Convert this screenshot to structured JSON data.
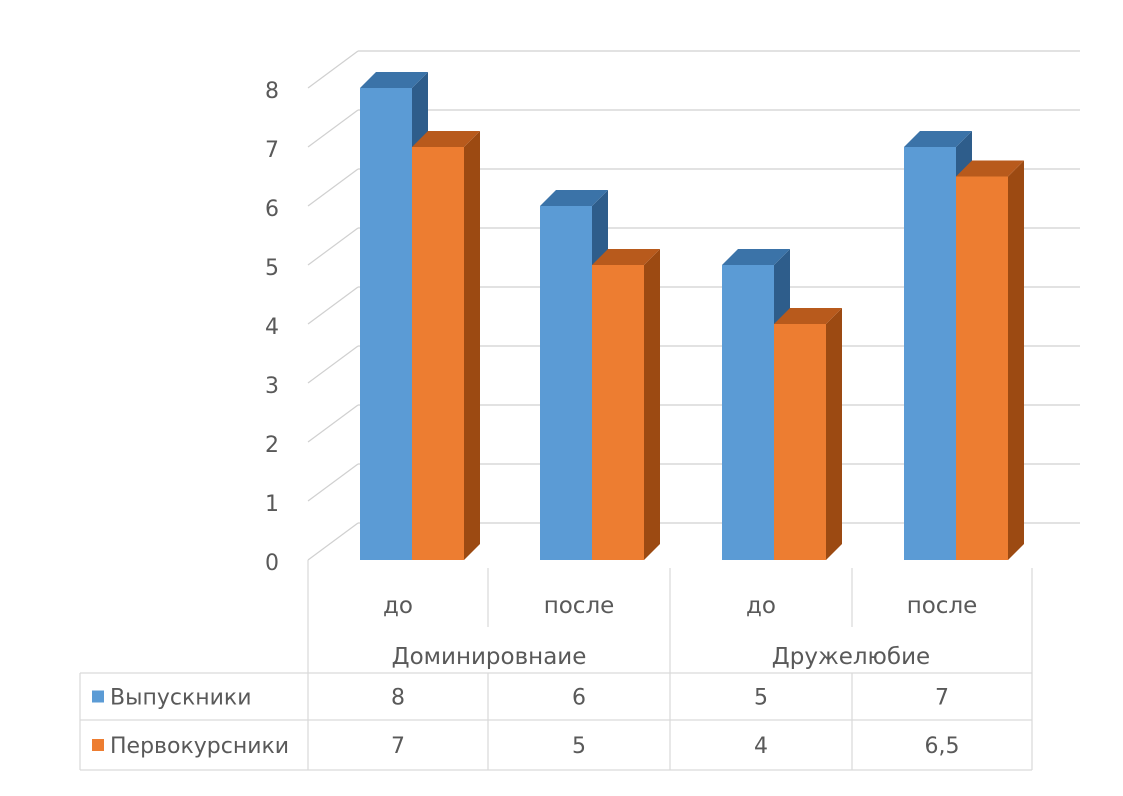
{
  "chart_data": {
    "type": "bar",
    "style": "3d-clustered-column",
    "groups": [
      {
        "label": "Доминировнаие",
        "categories": [
          "до",
          "после"
        ]
      },
      {
        "label": "Дружелюбие",
        "categories": [
          "до",
          "после"
        ]
      }
    ],
    "categories": [
      "до",
      "после",
      "до",
      "после"
    ],
    "series": [
      {
        "name": "Выпускники",
        "values": [
          8,
          6,
          5,
          7
        ],
        "value_labels": [
          "8",
          "6",
          "5",
          "7"
        ],
        "color": "#5B9BD5",
        "side_color": "#2E5D8B",
        "top_color": "#3B73A8"
      },
      {
        "name": "Первокурсники",
        "values": [
          7,
          5,
          4,
          6.5
        ],
        "value_labels": [
          "7",
          "5",
          "4",
          "6,5"
        ],
        "color": "#ED7D31",
        "side_color": "#9C4A12",
        "top_color": "#B85A1C"
      }
    ],
    "ylim": [
      0,
      8
    ],
    "yticks": [
      "0",
      "1",
      "2",
      "3",
      "4",
      "5",
      "6",
      "7",
      "8"
    ],
    "grid": true,
    "legend": "data-table"
  }
}
